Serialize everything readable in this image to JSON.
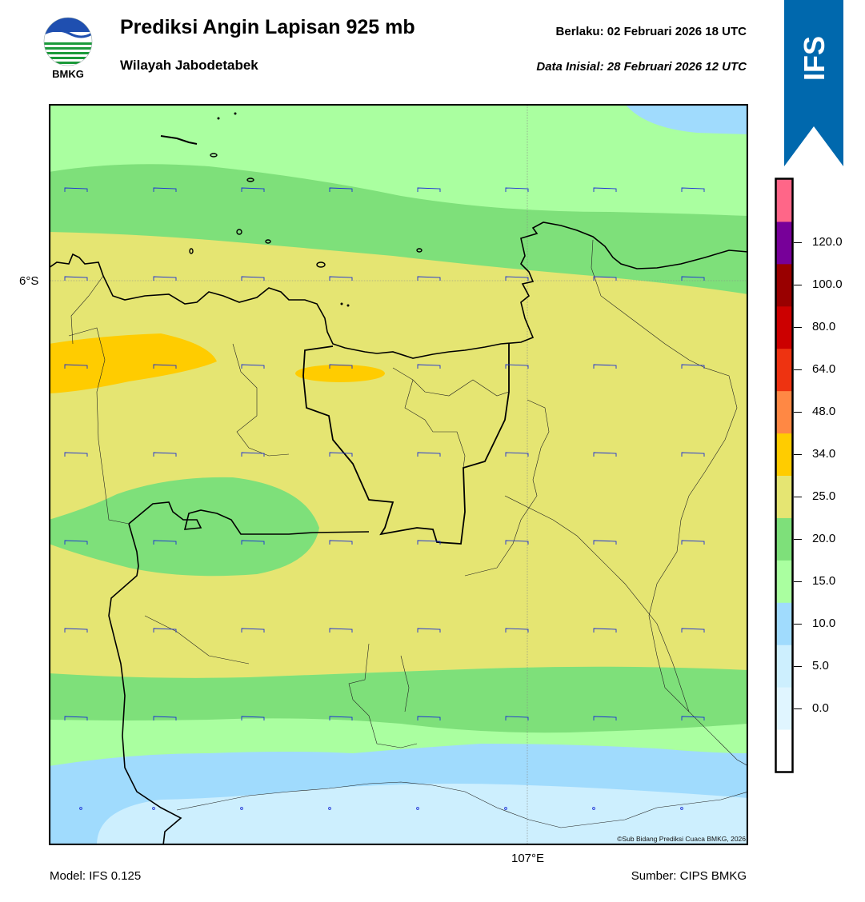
{
  "header": {
    "logo_label": "BMKG",
    "title": "Prediksi Angin Lapisan 925 mb",
    "subtitle": "Wilayah Jabodetabek",
    "valid_time": "Berlaku:  02 Februari 2026 18 UTC",
    "initial_data": "Data Inisial:  28 Februari 2026 12 UTC",
    "model_badge": "IFS",
    "badge_color": "#0068AD"
  },
  "map": {
    "lat_label": "6°S",
    "lon_label": "107°E",
    "copyright": "©Sub Bidang Prediksi Cuaca BMKG, 2026"
  },
  "footer": {
    "model": "Model: IFS 0.125",
    "source": "Sumber: CIPS BMKG"
  },
  "colorbar": {
    "labels": [
      "0.0",
      "5.0",
      "10.0",
      "15.0",
      "20.0",
      "25.0",
      "34.0",
      "48.0",
      "64.0",
      "80.0",
      "100.0",
      "120.0"
    ],
    "colors": [
      "#ffffff",
      "#e0f5ff",
      "#cdeffe",
      "#a0dbfd",
      "#aaffa0",
      "#7ee07a",
      "#e5e572",
      "#ffcc00",
      "#ff8844",
      "#ee3311",
      "#cc0000",
      "#990000",
      "#770099",
      "#ff6688"
    ]
  }
}
